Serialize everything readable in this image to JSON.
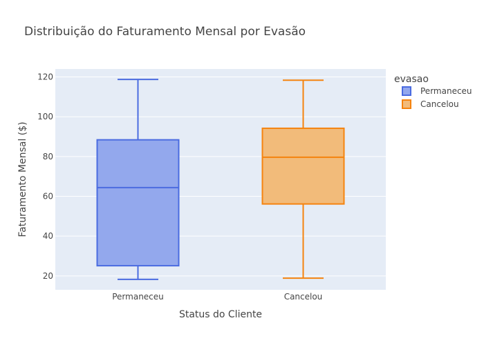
{
  "chart_data": {
    "type": "box",
    "title": "Distribuição do Faturamento Mensal por Evasão",
    "xlabel": "Status do Cliente",
    "ylabel": "Faturamento Mensal ($)",
    "categories": [
      "Permaneceu",
      "Cancelou"
    ],
    "ylim": [
      13,
      124
    ],
    "yticks": [
      20,
      40,
      60,
      80,
      100,
      120
    ],
    "grid": true,
    "legend": {
      "title": "evasao",
      "placement": "top-right"
    },
    "series": [
      {
        "name": "Permaneceu",
        "color": "#4a6be0",
        "fill": "#93a8ed",
        "min": 18.25,
        "q1": 25.1,
        "median": 64.4,
        "q3": 88.4,
        "max": 118.75
      },
      {
        "name": "Cancelou",
        "color": "#f5830e",
        "fill": "#f2bb7a",
        "min": 18.85,
        "q1": 56.15,
        "median": 79.65,
        "q3": 94.2,
        "max": 118.35
      }
    ]
  }
}
